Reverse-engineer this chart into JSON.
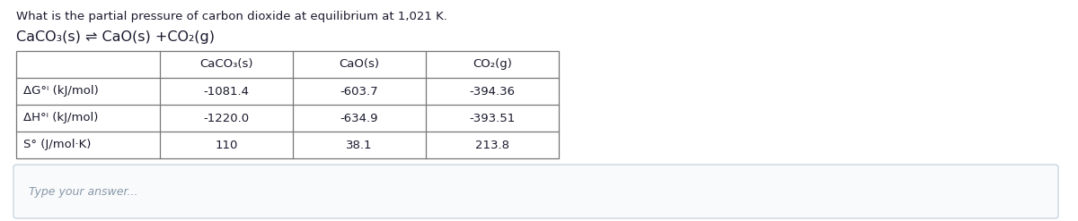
{
  "question": "What is the partial pressure of carbon dioxide at equilibrium at 1,021 K.",
  "equation": "CaCO₃(s) ⇌ CaO(s) +CO₂(g)",
  "col_headers": [
    "CaCO₃(s)",
    "CaO(s)",
    "CO₂(g)"
  ],
  "row_headers": [
    "ΔG°ⁱ (kJ/mol)",
    "ΔH°ⁱ (kJ/mol)",
    "S° (J/mol·K)"
  ],
  "table_data": [
    [
      "-1081.4",
      "-603.7",
      "-394.36"
    ],
    [
      "-1220.0",
      "-634.9",
      "-393.51"
    ],
    [
      "110",
      "38.1",
      "213.8"
    ]
  ],
  "answer_placeholder": "Type your answer...",
  "bg_color": "#ffffff",
  "table_border_color": "#777777",
  "text_color": "#1a1a2e",
  "placeholder_color": "#8899aa",
  "question_fontsize": 9.5,
  "equation_fontsize": 11.5,
  "table_header_fontsize": 9.5,
  "table_data_fontsize": 9.5,
  "answer_fontsize": 9
}
